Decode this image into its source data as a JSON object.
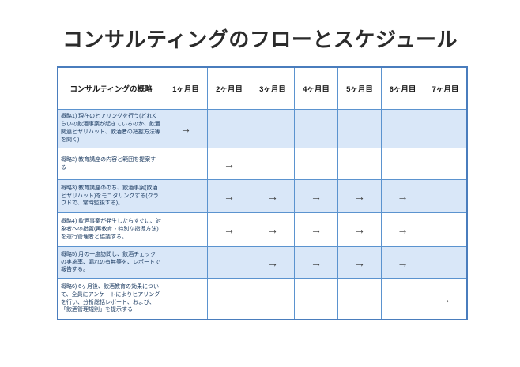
{
  "title": "コンサルティングのフローとスケジュール",
  "colors": {
    "table_border": "#5b93cf",
    "table_outer_border": "#4a7dbd",
    "alt_row_fill": "#d9e7f8",
    "label_text": "#17375e",
    "arrow": "#333333"
  },
  "table": {
    "columns": [
      "コンサルティングの概略",
      "1ヶ月目",
      "2ヶ月目",
      "3ヶ月目",
      "4ヶ月目",
      "5ヶ月目",
      "6ヶ月目",
      "7ヶ月目"
    ],
    "arrow_symbol": "→",
    "rows": [
      {
        "label": "概略1) 現在のヒアリングを行う(どれくらいの飲酒事案が起きているのか、飲酒関連ヒヤリハット、飲酒者の把握方法等を聞く)",
        "months": [
          "→",
          "",
          "",
          "",
          "",
          "",
          ""
        ]
      },
      {
        "label": "概略2) 教育講座の内容と範囲を提案する",
        "months": [
          "",
          "→",
          "",
          "",
          "",
          "",
          ""
        ]
      },
      {
        "label": "概略3) 教育講座ののち、飲酒事案(飲酒ヒヤリハット)をモニタリングする(クラウドで、常時監視する)。",
        "months": [
          "",
          "→",
          "→",
          "→",
          "→",
          "→",
          ""
        ]
      },
      {
        "label": "概略4) 飲酒事案が発生したらすぐに、対象者への措置(再教育・特別な指導方法)を運行管理者と協議する。",
        "months": [
          "",
          "→",
          "→",
          "→",
          "→",
          "→",
          ""
        ]
      },
      {
        "label": "概略5) 月の一度訪問し、飲酒チェックの実施率、漏れの有無等を、レポートで報告する。",
        "months": [
          "",
          "",
          "→",
          "→",
          "→",
          "→",
          ""
        ]
      },
      {
        "label": "概略6) 6ヶ月後、飲酒教育の効果について、全員にアンケートによりヒアリングを行い、分析総括レポート、および、「飲酒管理規則」を提示する",
        "months": [
          "",
          "",
          "",
          "",
          "",
          "",
          "→"
        ]
      }
    ]
  }
}
